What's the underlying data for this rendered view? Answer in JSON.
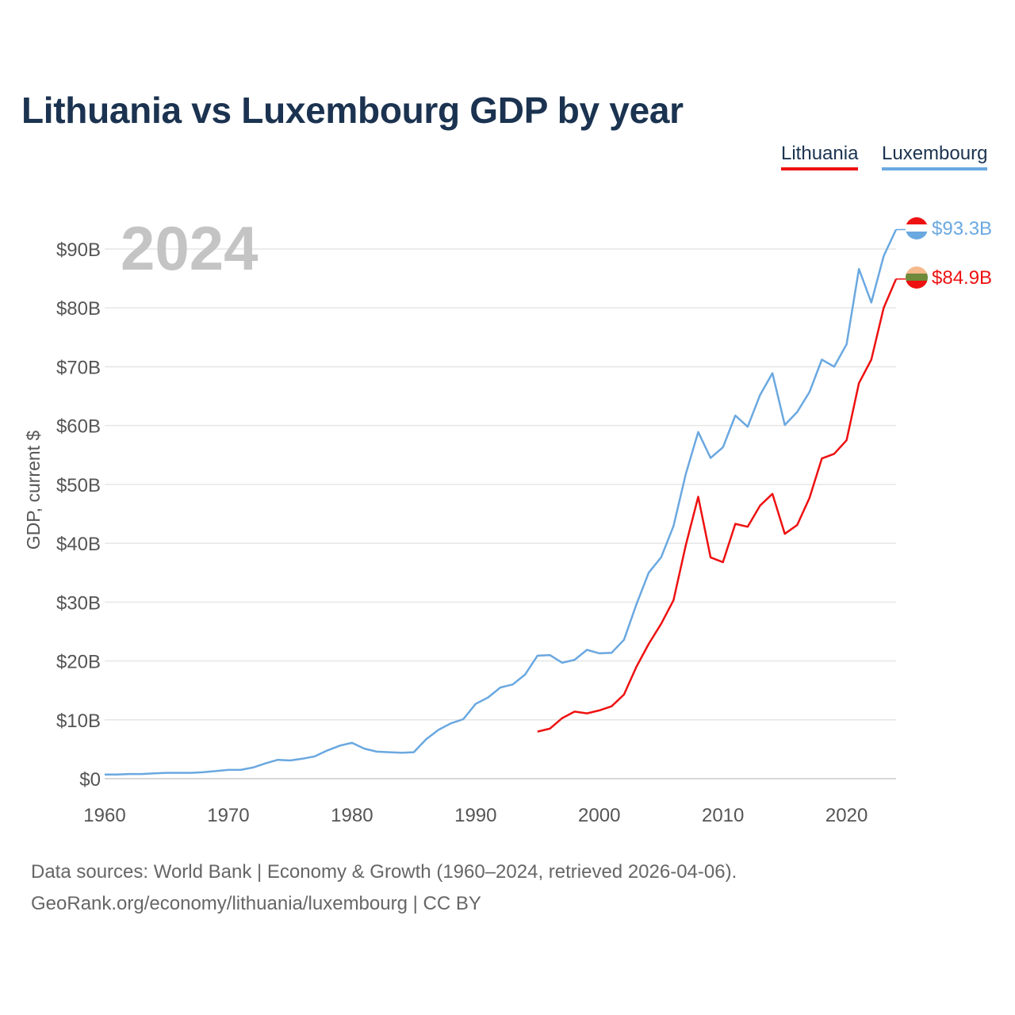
{
  "colors": {
    "lithuania": "#ee1111",
    "luxembourg": "#6aa8e0",
    "title": "#1b3350",
    "year_label": "#c4c4c4",
    "grid": "#e6e6e6",
    "tick_text": "#555555"
  },
  "title": "Lithuania vs Luxembourg GDP by year",
  "legend": {
    "lithuania": "Lithuania",
    "luxembourg": "Luxembourg"
  },
  "year_label": "2024",
  "flags": {
    "lithuania": "lithuania-flag-icon",
    "luxembourg": "luxembourg-flag-icon"
  },
  "end_labels": {
    "lithuania": "$84.9B",
    "luxembourg": "$93.3B"
  },
  "footer": {
    "source": "Data sources: World Bank | Economy & Growth (1960–2024, retrieved 2026-04-06).",
    "credit": "GeoRank.org/economy/lithuania/luxembourg | CC BY"
  },
  "chart_data": {
    "type": "line",
    "title": "Lithuania vs Luxembourg GDP by year",
    "xlabel": "",
    "ylabel": "GDP, current $",
    "xlim": [
      1960,
      2024
    ],
    "ylim": [
      0,
      95
    ],
    "x_ticks": [
      1960,
      1970,
      1980,
      1990,
      2000,
      2010,
      2020
    ],
    "x_tick_labels": [
      "1960",
      "1970",
      "1980",
      "1990",
      "2000",
      "2010",
      "2020"
    ],
    "y_ticks": [
      0,
      10,
      20,
      30,
      40,
      50,
      60,
      70,
      80,
      90
    ],
    "y_tick_labels": [
      "$0",
      "$10B",
      "$20B",
      "$30B",
      "$40B",
      "$50B",
      "$60B",
      "$70B",
      "$80B",
      "$90B"
    ],
    "units": "billions of current US$",
    "series": [
      {
        "name": "Lithuania",
        "key": "lithuania",
        "x": [
          1995,
          1996,
          1997,
          1998,
          1999,
          2000,
          2001,
          2002,
          2003,
          2004,
          2005,
          2006,
          2007,
          2008,
          2009,
          2010,
          2011,
          2012,
          2013,
          2014,
          2015,
          2016,
          2017,
          2018,
          2019,
          2020,
          2021,
          2022,
          2023,
          2024
        ],
        "values": [
          8.0,
          8.5,
          10.3,
          11.4,
          11.1,
          11.6,
          12.3,
          14.3,
          19.0,
          22.9,
          26.3,
          30.3,
          39.7,
          47.9,
          37.6,
          36.8,
          43.3,
          42.8,
          46.4,
          48.4,
          41.6,
          43.1,
          47.7,
          54.4,
          55.2,
          57.5,
          67.2,
          71.2,
          80.0,
          84.9
        ]
      },
      {
        "name": "Luxembourg",
        "key": "luxembourg",
        "x": [
          1960,
          1961,
          1962,
          1963,
          1964,
          1965,
          1966,
          1967,
          1968,
          1969,
          1970,
          1971,
          1972,
          1973,
          1974,
          1975,
          1976,
          1977,
          1978,
          1979,
          1980,
          1981,
          1982,
          1983,
          1984,
          1985,
          1986,
          1987,
          1988,
          1989,
          1990,
          1991,
          1992,
          1993,
          1994,
          1995,
          1996,
          1997,
          1998,
          1999,
          2000,
          2001,
          2002,
          2003,
          2004,
          2005,
          2006,
          2007,
          2008,
          2009,
          2010,
          2011,
          2012,
          2013,
          2014,
          2015,
          2016,
          2017,
          2018,
          2019,
          2020,
          2021,
          2022,
          2023,
          2024
        ],
        "values": [
          0.7,
          0.7,
          0.8,
          0.8,
          0.9,
          1.0,
          1.0,
          1.0,
          1.1,
          1.3,
          1.5,
          1.5,
          1.9,
          2.6,
          3.2,
          3.1,
          3.4,
          3.8,
          4.8,
          5.6,
          6.1,
          5.1,
          4.6,
          4.5,
          4.4,
          4.5,
          6.7,
          8.3,
          9.4,
          10.1,
          12.7,
          13.8,
          15.5,
          16.0,
          17.7,
          20.9,
          21.0,
          19.7,
          20.2,
          21.9,
          21.3,
          21.4,
          23.6,
          29.6,
          35.0,
          37.6,
          42.9,
          51.8,
          58.9,
          54.5,
          56.3,
          61.7,
          59.8,
          65.2,
          68.9,
          60.1,
          62.3,
          65.7,
          71.2,
          70.0,
          73.8,
          86.6,
          80.9,
          88.8,
          93.3
        ]
      }
    ]
  }
}
